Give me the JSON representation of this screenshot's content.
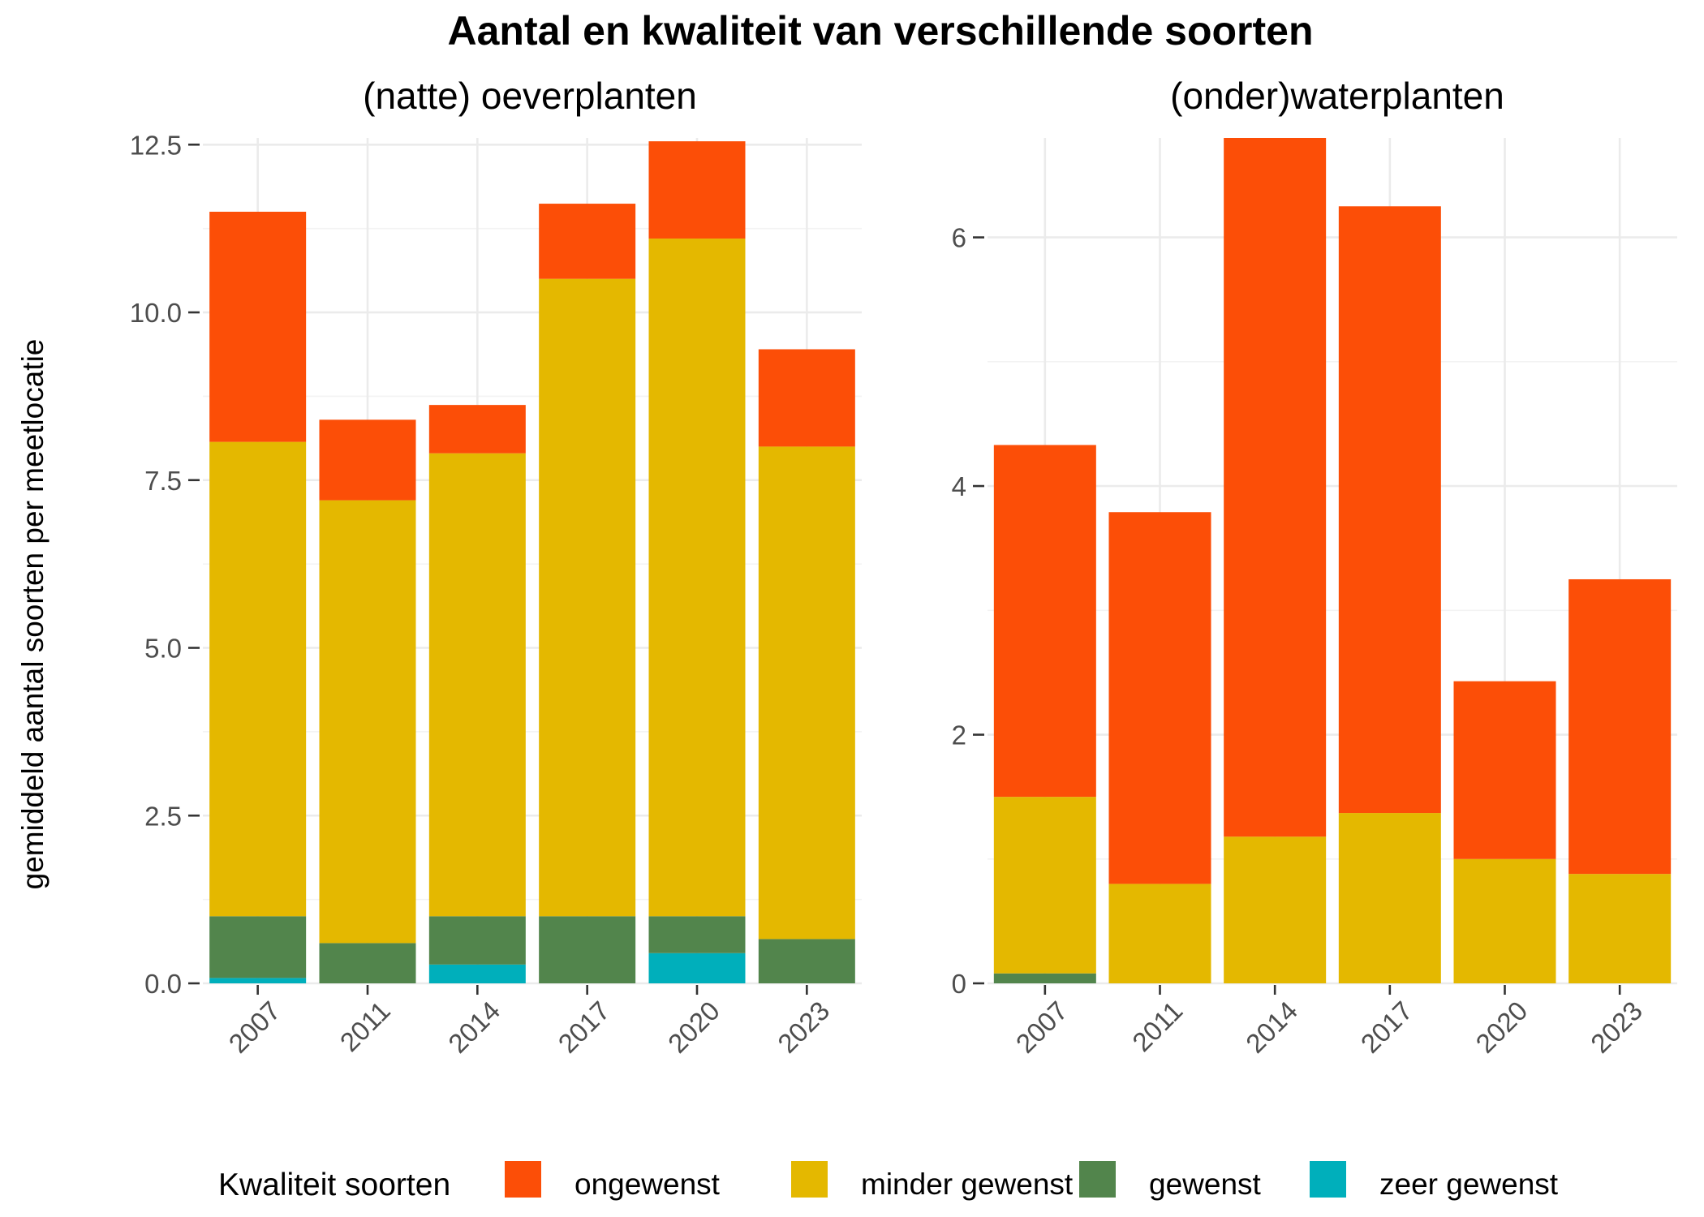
{
  "title": "Aantal en kwaliteit van verschillende soorten",
  "ylabel": "gemiddeld aantal soorten per meetlocatie",
  "legend": {
    "title": "Kwaliteit soorten",
    "position": "bottom",
    "items": [
      {
        "label": "ongewenst",
        "color": "#fc4e07"
      },
      {
        "label": "minder gewenst",
        "color": "#e4b800"
      },
      {
        "label": "gewenst",
        "color": "#52854c"
      },
      {
        "label": "zeer gewenst",
        "color": "#00afbb"
      }
    ]
  },
  "chart_data": [
    {
      "type": "bar",
      "stacked": true,
      "title": "(natte) oeverplanten",
      "categories": [
        "2007",
        "2011",
        "2014",
        "2017",
        "2020",
        "2023"
      ],
      "ylim": [
        0,
        12.6
      ],
      "yticks": [
        "0.0",
        "2.5",
        "5.0",
        "7.5",
        "10.0",
        "12.5"
      ],
      "ytick_values": [
        0,
        2.5,
        5,
        7.5,
        10,
        12.5
      ],
      "grid": true,
      "series": [
        {
          "name": "zeer gewenst",
          "values": [
            0.08,
            0.0,
            0.28,
            0.0,
            0.45,
            0.0
          ]
        },
        {
          "name": "gewenst",
          "values": [
            0.92,
            0.6,
            0.72,
            1.0,
            0.55,
            0.66
          ]
        },
        {
          "name": "minder gewenst",
          "values": [
            7.07,
            6.6,
            6.9,
            9.5,
            10.1,
            7.34
          ]
        },
        {
          "name": "ongewenst",
          "values": [
            3.43,
            1.2,
            0.72,
            1.12,
            1.45,
            1.45
          ]
        }
      ]
    },
    {
      "type": "bar",
      "stacked": true,
      "title": "(onder)waterplanten",
      "categories": [
        "2007",
        "2011",
        "2014",
        "2017",
        "2020",
        "2023"
      ],
      "ylim": [
        0,
        6.8
      ],
      "yticks": [
        "0",
        "2",
        "4",
        "6"
      ],
      "ytick_values": [
        0,
        2,
        4,
        6
      ],
      "grid": true,
      "series": [
        {
          "name": "zeer gewenst",
          "values": [
            0,
            0,
            0,
            0,
            0,
            0
          ]
        },
        {
          "name": "gewenst",
          "values": [
            0.08,
            0,
            0,
            0,
            0,
            0
          ]
        },
        {
          "name": "minder gewenst",
          "values": [
            1.42,
            0.8,
            1.18,
            1.37,
            1.0,
            0.88
          ]
        },
        {
          "name": "ongewenst",
          "values": [
            2.83,
            2.99,
            5.62,
            4.88,
            1.43,
            2.37
          ]
        }
      ]
    }
  ]
}
